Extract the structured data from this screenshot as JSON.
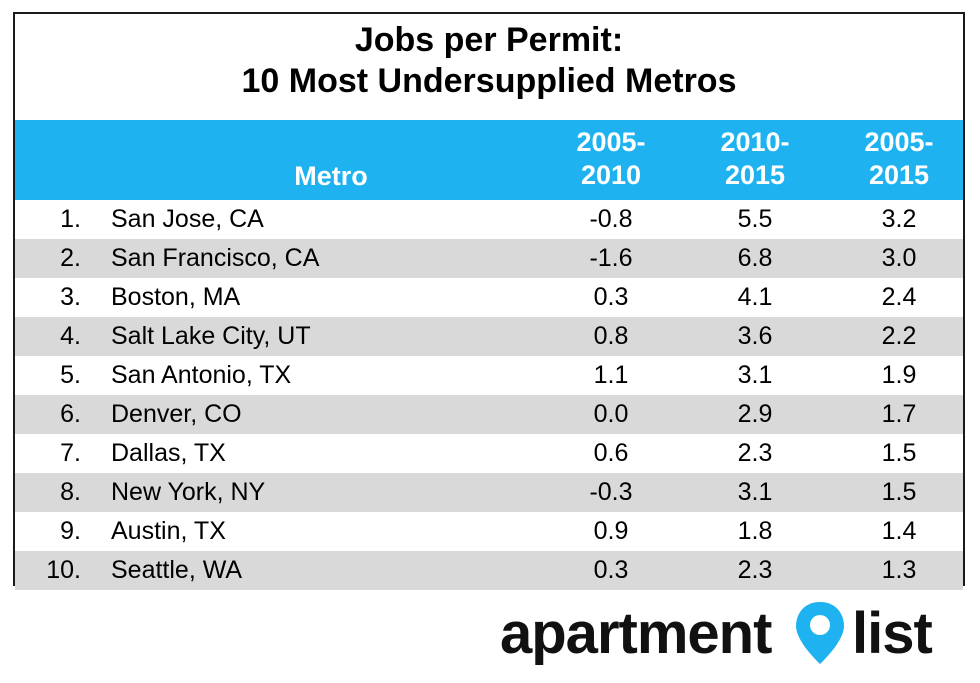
{
  "chart_data": {
    "type": "table",
    "title_lines": [
      "Jobs per Permit:",
      "10 Most Undersupplied Metros"
    ],
    "columns": [
      {
        "key": "rank",
        "label": ""
      },
      {
        "key": "metro",
        "label": "Metro"
      },
      {
        "key": "p2005_2010",
        "label_lines": [
          "2005-",
          "2010"
        ]
      },
      {
        "key": "p2010_2015",
        "label_lines": [
          "2010-",
          "2015"
        ]
      },
      {
        "key": "p2005_2015",
        "label_lines": [
          "2005-",
          "2015"
        ]
      }
    ],
    "rows": [
      {
        "rank": "1.",
        "metro": "San Jose, CA",
        "p2005_2010": "-0.8",
        "p2010_2015": "5.5",
        "p2005_2015": "3.2"
      },
      {
        "rank": "2.",
        "metro": "San Francisco, CA",
        "p2005_2010": "-1.6",
        "p2010_2015": "6.8",
        "p2005_2015": "3.0"
      },
      {
        "rank": "3.",
        "metro": "Boston, MA",
        "p2005_2010": "0.3",
        "p2010_2015": "4.1",
        "p2005_2015": "2.4"
      },
      {
        "rank": "4.",
        "metro": "Salt Lake City, UT",
        "p2005_2010": "0.8",
        "p2010_2015": "3.6",
        "p2005_2015": "2.2"
      },
      {
        "rank": "5.",
        "metro": "San Antonio, TX",
        "p2005_2010": "1.1",
        "p2010_2015": "3.1",
        "p2005_2015": "1.9"
      },
      {
        "rank": "6.",
        "metro": "Denver, CO",
        "p2005_2010": "0.0",
        "p2010_2015": "2.9",
        "p2005_2015": "1.7"
      },
      {
        "rank": "7.",
        "metro": "Dallas, TX",
        "p2005_2010": "0.6",
        "p2010_2015": "2.3",
        "p2005_2015": "1.5"
      },
      {
        "rank": "8.",
        "metro": "New York, NY",
        "p2005_2010": "-0.3",
        "p2010_2015": "3.1",
        "p2005_2015": "1.5"
      },
      {
        "rank": "9.",
        "metro": "Austin, TX",
        "p2005_2010": "0.9",
        "p2010_2015": "1.8",
        "p2005_2015": "1.4"
      },
      {
        "rank": "10.",
        "metro": "Seattle, WA",
        "p2005_2010": "0.3",
        "p2010_2015": "2.3",
        "p2005_2015": "1.3"
      }
    ],
    "header_color": "#1EB3F0",
    "alt_row_color": "#d9d9d9"
  },
  "logo": {
    "text_left": "apartment",
    "text_right": "list",
    "pin_color": "#1EB3F0"
  }
}
